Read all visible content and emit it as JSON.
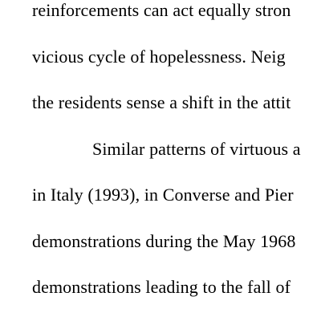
{
  "document": {
    "lines": [
      "reinforcements can act equally stron",
      "vicious cycle of hopelessness.  Neig",
      "the residents sense a shift in the attit",
      "Similar patterns of virtuous a",
      "in Italy (1993), in Converse and Pier",
      "demonstrations during the May 1968",
      "demonstrations leading to the fall of"
    ]
  }
}
